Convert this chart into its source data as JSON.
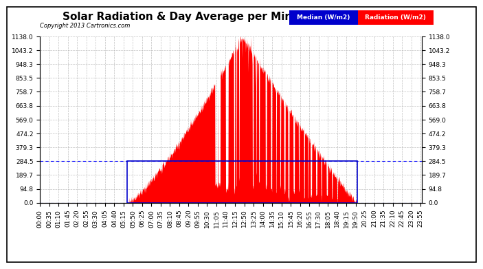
{
  "title": "Solar Radiation & Day Average per Minute (Today) 20130719",
  "copyright": "Copyright 2013 Cartronics.com",
  "legend_labels": [
    "Median (W/m2)",
    "Radiation (W/m2)"
  ],
  "background_color": "#ffffff",
  "plot_bg_color": "#ffffff",
  "grid_color": "#b0b0b0",
  "yticks": [
    0.0,
    94.8,
    189.7,
    284.5,
    379.3,
    474.2,
    569.0,
    663.8,
    758.7,
    853.5,
    948.3,
    1043.2,
    1138.0
  ],
  "ymax": 1138.0,
  "ymin": 0.0,
  "radiation_color": "#ff0000",
  "median_box_color": "#0000cc",
  "dashed_line_color": "#0000ff",
  "title_fontsize": 11,
  "tick_fontsize": 6.5,
  "num_minutes": 1440,
  "sunrise_minute": 328,
  "sunset_minute": 1195,
  "peak_minute": 755,
  "peak_value": 1138.0,
  "median_value": 284.5,
  "xtick_step": 35
}
